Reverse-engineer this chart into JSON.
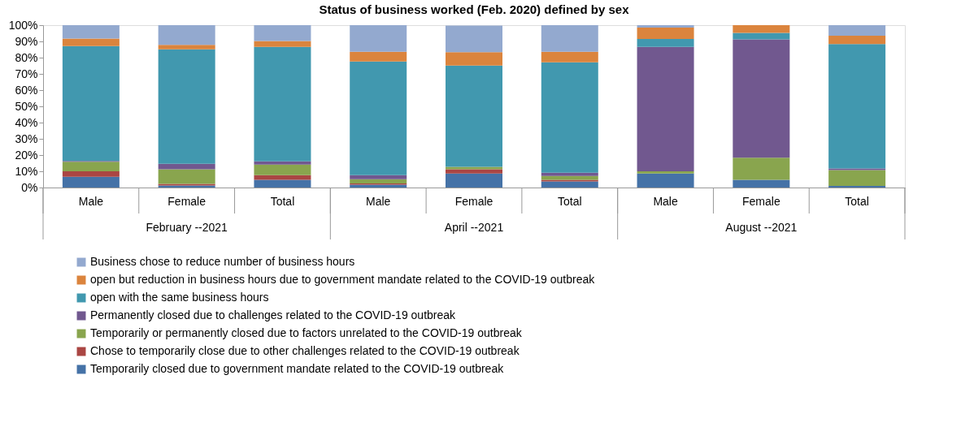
{
  "chart_data": {
    "type": "bar",
    "stacked": true,
    "title": "Status of business worked  (Feb. 2020) defined by sex",
    "categories": [
      "Male",
      "Female",
      "Total",
      "Male",
      "Female",
      "Total",
      "Male",
      "Female",
      "Total"
    ],
    "annotations": [
      "February --2021",
      "April --2021",
      "August --2021"
    ],
    "series": [
      {
        "name": "Temporarily closed due to government mandate related to the COVID-19 outbreak",
        "color": "#4572a7",
        "values": [
          6.6,
          1.3,
          4.8,
          1.8,
          8.6,
          3.8,
          8.6,
          4.8,
          1.0
        ]
      },
      {
        "name": "Chose to temporarily close due to other challenges related to the COVID-19 outbreak",
        "color": "#aa4643",
        "values": [
          3.4,
          1.0,
          2.8,
          0.7,
          2.7,
          1.0,
          0,
          0,
          0
        ]
      },
      {
        "name": "Temporarily or permanently closed due to factors unrelated to the COVID-19 outbreak",
        "color": "#89a54e",
        "values": [
          5.9,
          9.0,
          6.5,
          2.6,
          1.5,
          2.3,
          1.4,
          13.6,
          9.8
        ]
      },
      {
        "name": "Permanently closed due to challenges related to the COVID-19 outbreak",
        "color": "#71588f",
        "values": [
          0.5,
          3.3,
          2.0,
          2.5,
          null,
          2.0,
          76.6,
          72.8,
          1.0
        ]
      },
      {
        "name": "open with the same business hours",
        "color": "#4198af",
        "values": [
          70.7,
          70.5,
          70.5,
          70.0,
          62.3,
          68.0,
          4.9,
          4.1,
          76.6
        ]
      },
      {
        "name": "open but reduction in business hours due to government mandate related to the COVID-19 outbreak",
        "color": "#db843d",
        "values": [
          4.6,
          2.8,
          3.6,
          6.0,
          8.3,
          6.5,
          7.0,
          4.7,
          5.1
        ]
      },
      {
        "name": "Business chose to reduce number of business hours",
        "color": "#93a9cf",
        "values": [
          8.3,
          12.1,
          9.8,
          16.4,
          16.4,
          16.4,
          1.5,
          0,
          6.5
        ]
      }
    ],
    "ylim": [
      0,
      100
    ],
    "yticks": [
      {
        "value": 0,
        "label": "0%"
      },
      {
        "value": 10,
        "label": "10%"
      },
      {
        "value": 20,
        "label": "20%"
      },
      {
        "value": 30,
        "label": "30%"
      },
      {
        "value": 40,
        "label": "40%"
      },
      {
        "value": 50,
        "label": "50%"
      },
      {
        "value": 60,
        "label": "60%"
      },
      {
        "value": 70,
        "label": "70%"
      },
      {
        "value": 80,
        "label": "80%"
      },
      {
        "value": 90,
        "label": "90%"
      },
      {
        "value": 100,
        "label": "100%"
      }
    ],
    "grid": false,
    "legend": "bottom left"
  }
}
